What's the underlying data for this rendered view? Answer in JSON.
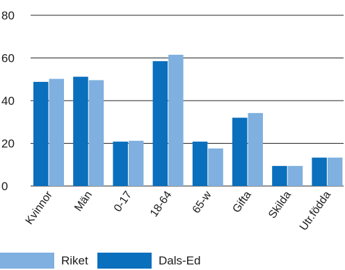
{
  "chart_data": {
    "type": "bar",
    "title": "",
    "xlabel": "",
    "ylabel": "",
    "ylim": [
      0,
      80
    ],
    "yticks": [
      0,
      20,
      40,
      60,
      80
    ],
    "grid": "horizontal",
    "legend_position": "bottom-left",
    "categories": [
      "Kvinnor",
      "Män",
      "0-17",
      "18-64",
      "65-w",
      "Gifta",
      "Skilda",
      "Utr.födda"
    ],
    "series": [
      {
        "name": "Dals-Ed",
        "color": "#0a6fbd",
        "values": [
          48.8,
          51.2,
          20.8,
          58.5,
          20.8,
          32.0,
          9.4,
          13.3
        ]
      },
      {
        "name": "Riket",
        "color": "#7fb0df",
        "values": [
          50.2,
          49.6,
          21.2,
          61.5,
          17.6,
          34.2,
          9.4,
          13.3
        ]
      }
    ],
    "legend": [
      {
        "name": "Riket",
        "color": "#7fb0df"
      },
      {
        "name": "Dals-Ed",
        "color": "#0a6fbd"
      }
    ]
  }
}
